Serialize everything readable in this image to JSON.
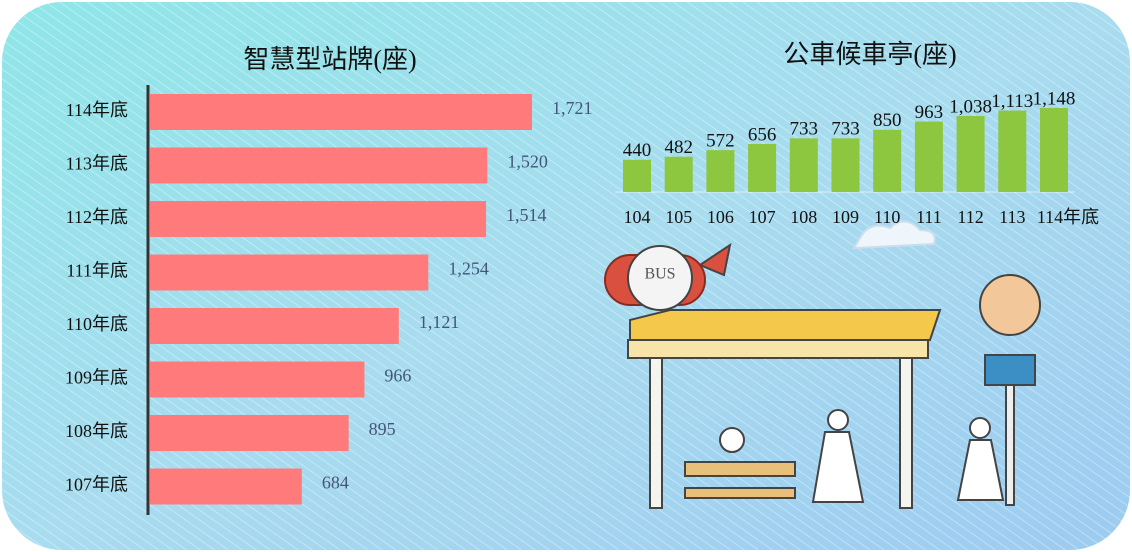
{
  "chart_data": [
    {
      "type": "hbar",
      "title": "智慧型站牌(座)",
      "categories": [
        "114年底",
        "113年底",
        "112年底",
        "111年底",
        "110年底",
        "109年底",
        "108年底",
        "107年底"
      ],
      "values": [
        1721,
        1520,
        1514,
        1254,
        1121,
        966,
        895,
        684
      ],
      "value_labels": [
        "1,721",
        "1,520",
        "1,514",
        "1,254",
        "1,121",
        "966",
        "895",
        "684"
      ],
      "color": "#ff7b7b"
    },
    {
      "type": "bar",
      "title": "公車候車亭(座)",
      "categories": [
        "104",
        "105",
        "106",
        "107",
        "108",
        "109",
        "110",
        "111",
        "112",
        "113",
        "114年底"
      ],
      "values": [
        440,
        482,
        572,
        656,
        733,
        733,
        850,
        963,
        1038,
        1113,
        1148
      ],
      "value_labels": [
        "440",
        "482",
        "572",
        "656",
        "733",
        "733",
        "850",
        "963",
        "1,038",
        "1,113",
        "1,148"
      ],
      "color": "#8dc63f"
    }
  ]
}
